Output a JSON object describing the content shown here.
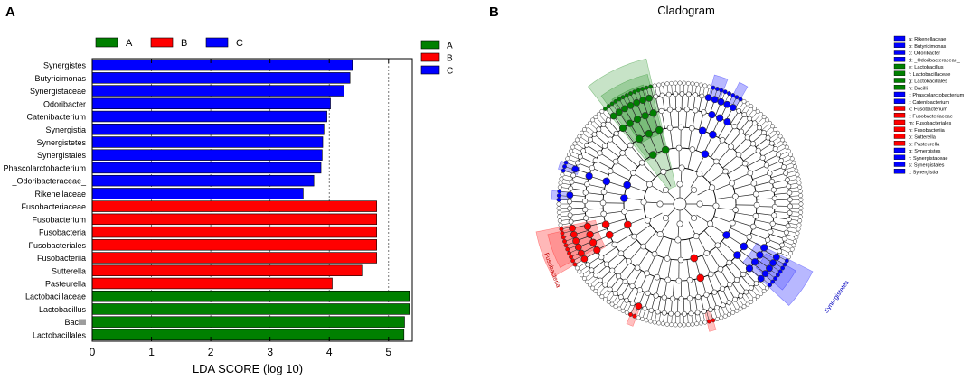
{
  "panel_labels": [
    "A",
    "B"
  ],
  "colors": {
    "A": "#008000",
    "B": "#ff0000",
    "C": "#0000ff"
  },
  "chart_data": [
    {
      "type": "bar",
      "orientation": "horizontal",
      "title": "",
      "xlabel": "LDA SCORE (log 10)",
      "ylabel": "",
      "xlim": [
        0,
        5.4
      ],
      "xticks": [
        0,
        1,
        2,
        3,
        4,
        5
      ],
      "xtick_labels": [
        "0",
        "1",
        "2",
        "3",
        "4",
        "5"
      ],
      "grid": "vertical dashed",
      "legend_top": [
        "A",
        "B",
        "C"
      ],
      "legend_right": [
        "A",
        "B",
        "C"
      ],
      "categories": [
        "Synergistes",
        "Butyricimonas",
        "Synergistaceae",
        "Odoribacter",
        "Catenibacterium",
        "Synergistia",
        "Synergistetes",
        "Synergistales",
        "Phascolarctobacterium",
        "_Odoribacteraceae_",
        "Rikenellaceae",
        "Fusobacteriaceae",
        "Fusobacterium",
        "Fusobacteria",
        "Fusobacteriales",
        "Fusobacteriia",
        "Sutterella",
        "Pasteurella",
        "Lactobacillaceae",
        "Lactobacillus",
        "Bacilli",
        "Lactobacillales"
      ],
      "values": [
        4.39,
        4.35,
        4.25,
        4.02,
        3.96,
        3.91,
        3.89,
        3.88,
        3.86,
        3.74,
        3.56,
        4.8,
        4.8,
        4.8,
        4.8,
        4.8,
        4.55,
        4.05,
        5.35,
        5.35,
        5.27,
        5.26
      ],
      "groups": [
        "C",
        "C",
        "C",
        "C",
        "C",
        "C",
        "C",
        "C",
        "C",
        "C",
        "C",
        "B",
        "B",
        "B",
        "B",
        "B",
        "B",
        "B",
        "A",
        "A",
        "A",
        "A"
      ]
    },
    {
      "type": "cladogram",
      "title": "Cladogram",
      "legend": [
        {
          "text": "a: Rikenellaceae",
          "group": "C"
        },
        {
          "text": "b: Butyricimonas",
          "group": "C"
        },
        {
          "text": "c: Odoribacter",
          "group": "C"
        },
        {
          "text": "d: _Odoribacteraceae_",
          "group": "C"
        },
        {
          "text": "e: Lactobacillus",
          "group": "A"
        },
        {
          "text": "f: Lactobacillaceae",
          "group": "A"
        },
        {
          "text": "g: Lactobacillales",
          "group": "A"
        },
        {
          "text": "h: Bacilli",
          "group": "A"
        },
        {
          "text": "i: Phascolarctobacterium",
          "group": "C"
        },
        {
          "text": "j: Catenibacterium",
          "group": "C"
        },
        {
          "text": "k: Fusobacterium",
          "group": "B"
        },
        {
          "text": "l: Fusobacteriaceae",
          "group": "B"
        },
        {
          "text": "m: Fusobacteriales",
          "group": "B"
        },
        {
          "text": "n: Fusobacteriia",
          "group": "B"
        },
        {
          "text": "o: Sutterella",
          "group": "B"
        },
        {
          "text": "p: Pasteurella",
          "group": "B"
        },
        {
          "text": "q: Synergistes",
          "group": "C"
        },
        {
          "text": "r: Synergistaceae",
          "group": "C"
        },
        {
          "text": "s: Synergistales",
          "group": "C"
        },
        {
          "text": "t: Synergistia",
          "group": "C"
        }
      ],
      "ring_labels": [
        "Fusobacteria",
        "Synergistetes"
      ]
    }
  ]
}
